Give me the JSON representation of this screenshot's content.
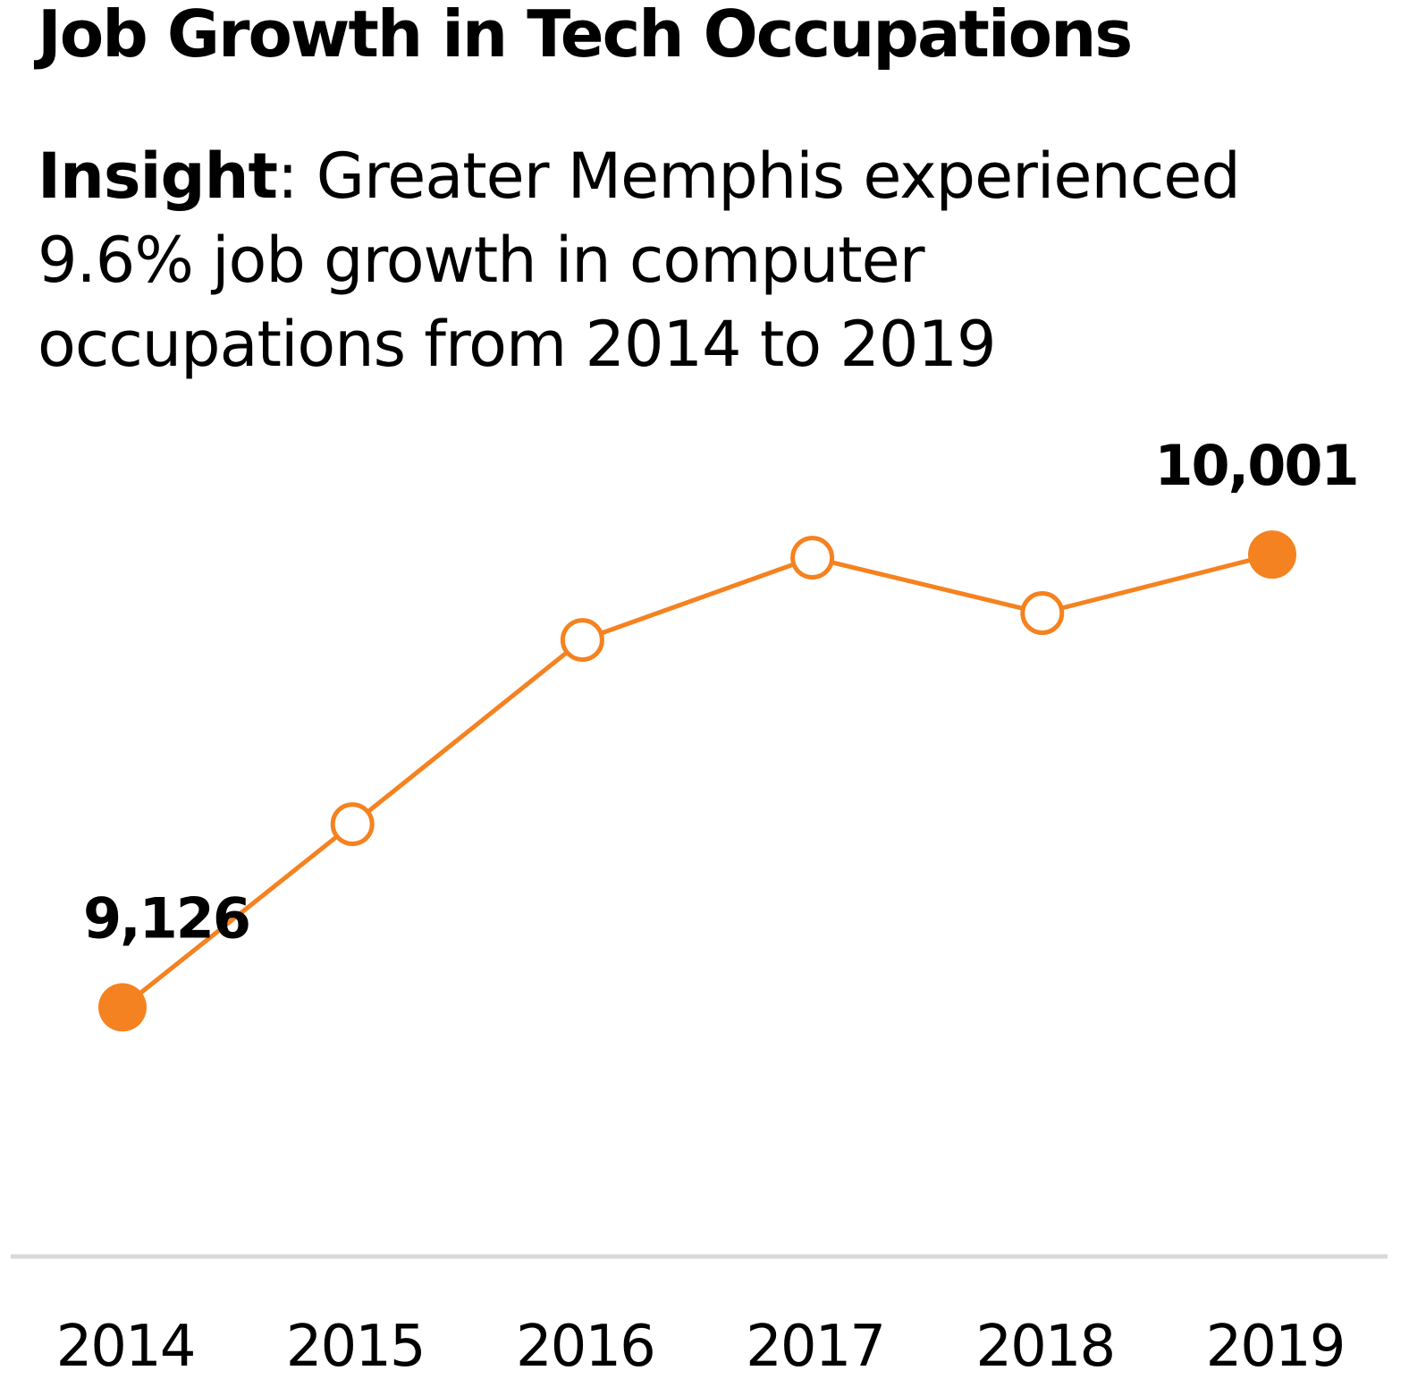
{
  "header": {
    "title": "Job Growth in Tech Occupations"
  },
  "insight": {
    "lead": "Insight",
    "lines": [
      ": Greater Memphis experienced",
      "9.6% job growth in computer",
      "occupations from 2014 to 2019"
    ]
  },
  "colors": {
    "line": "#f58220",
    "axis": "#d9d9d9",
    "text": "#000000"
  },
  "chart_data": {
    "type": "line",
    "title": "Job Growth in Tech Occupations",
    "xlabel": "",
    "ylabel": "",
    "x": [
      "2014",
      "2015",
      "2016",
      "2017",
      "2018",
      "2019"
    ],
    "values": [
      9126,
      9480,
      9836,
      9995,
      9888,
      10001
    ],
    "ylim": [
      8800,
      10200
    ],
    "grid": false,
    "legend": "none",
    "markers": [
      "filled",
      "hollow",
      "hollow",
      "hollow",
      "hollow",
      "filled"
    ],
    "data_labels": [
      {
        "index": 0,
        "text": "9,126"
      },
      {
        "index": 5,
        "text": "10,001"
      }
    ]
  }
}
